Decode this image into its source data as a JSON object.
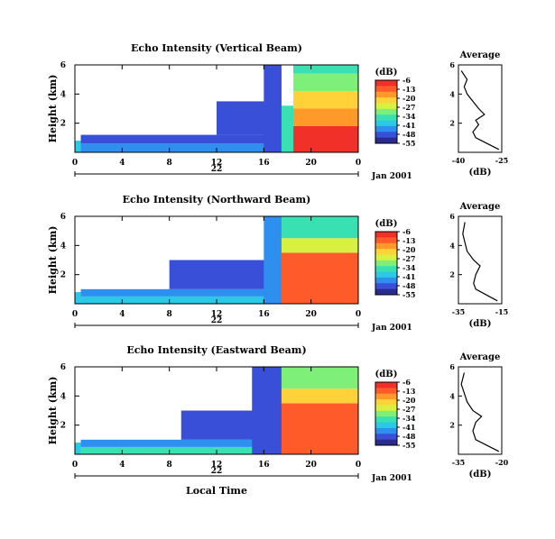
{
  "figure": {
    "common_xlabel": "Local Time",
    "date_label": "Jan 2001",
    "day_label": "22",
    "colorbar_unit": "(dB)",
    "profile_title": "Average",
    "profile_xlabel": "(dB)",
    "colors": {
      "background": "#ffffff",
      "axis": "#000000",
      "scale": [
        "#2b2b8f",
        "#3a4fd8",
        "#2f8fef",
        "#2cc9e6",
        "#38e0b2",
        "#7ef07a",
        "#d8f040",
        "#ffd23a",
        "#ff9a2a",
        "#ff5a2a",
        "#f2302a"
      ]
    }
  },
  "chart_data": [
    {
      "type": "heatmap",
      "title": "Echo Intensity (Vertical Beam)",
      "ylabel": "Height (km)",
      "xticks": [
        "0",
        "4",
        "8",
        "12",
        "16",
        "20",
        "0"
      ],
      "yticks": [
        "6",
        "4",
        "2"
      ],
      "x_unit": "hour (local time), 22 Jan 2001",
      "xlim": [
        0,
        24
      ],
      "ylim": [
        0,
        6
      ],
      "colorbar_ticks": [
        "-6",
        "-13",
        "-20",
        "-27",
        "-34",
        "-41",
        "-48",
        "-55"
      ],
      "colorbar_range": [
        -55,
        -6
      ],
      "regions": [
        {
          "x": [
            0,
            0.5
          ],
          "y": [
            0,
            0.8
          ],
          "value": -41
        },
        {
          "x": [
            0.5,
            17
          ],
          "y": [
            0,
            0.6
          ],
          "value": -45
        },
        {
          "x": [
            0.5,
            17
          ],
          "y": [
            0.6,
            1.2
          ],
          "value": -50
        },
        {
          "x": [
            12,
            17
          ],
          "y": [
            1.2,
            3.5
          ],
          "value": -50
        },
        {
          "x": [
            16,
            17.5
          ],
          "y": [
            0,
            6
          ],
          "value": -48
        },
        {
          "x": [
            17.5,
            18.5
          ],
          "y": [
            0,
            3.2
          ],
          "value": -34
        },
        {
          "x": [
            18.5,
            24
          ],
          "y": [
            0,
            1.8
          ],
          "value": -8
        },
        {
          "x": [
            18.5,
            24
          ],
          "y": [
            1.8,
            3.0
          ],
          "value": -14
        },
        {
          "x": [
            18.5,
            24
          ],
          "y": [
            3.0,
            4.2
          ],
          "value": -22
        },
        {
          "x": [
            18.5,
            24
          ],
          "y": [
            4.2,
            5.4
          ],
          "value": -30
        },
        {
          "x": [
            18.5,
            24
          ],
          "y": [
            5.4,
            6.0
          ],
          "value": -37
        }
      ],
      "profile": {
        "xlim": [
          -40,
          -25
        ],
        "xticks": [
          "-40",
          "-25"
        ],
        "yticks": [
          "6",
          "4",
          "2"
        ],
        "points": [
          {
            "dB": -26,
            "h": 0.2
          },
          {
            "dB": -30,
            "h": 0.6
          },
          {
            "dB": -34,
            "h": 1.0
          },
          {
            "dB": -35,
            "h": 1.4
          },
          {
            "dB": -33,
            "h": 1.9
          },
          {
            "dB": -34,
            "h": 2.2
          },
          {
            "dB": -31,
            "h": 2.6
          },
          {
            "dB": -33,
            "h": 3.0
          },
          {
            "dB": -35,
            "h": 3.5
          },
          {
            "dB": -37,
            "h": 4.0
          },
          {
            "dB": -38,
            "h": 4.5
          },
          {
            "dB": -37,
            "h": 5.0
          },
          {
            "dB": -39,
            "h": 5.6
          }
        ]
      }
    },
    {
      "type": "heatmap",
      "title": "Echo Intensity (Northward Beam)",
      "ylabel": "Height (km)",
      "xticks": [
        "0",
        "4",
        "8",
        "12",
        "16",
        "20",
        "0"
      ],
      "yticks": [
        "6",
        "4",
        "2"
      ],
      "x_unit": "hour (local time), 22 Jan 2001",
      "xlim": [
        0,
        24
      ],
      "ylim": [
        0,
        6
      ],
      "colorbar_ticks": [
        "-6",
        "-13",
        "-20",
        "-27",
        "-34",
        "-41",
        "-48",
        "-55"
      ],
      "colorbar_range": [
        -55,
        -6
      ],
      "regions": [
        {
          "x": [
            0,
            0.5
          ],
          "y": [
            0,
            0.8
          ],
          "value": -41
        },
        {
          "x": [
            0.5,
            17
          ],
          "y": [
            0,
            0.5
          ],
          "value": -38
        },
        {
          "x": [
            0.5,
            17
          ],
          "y": [
            0.5,
            1.0
          ],
          "value": -46
        },
        {
          "x": [
            8,
            17
          ],
          "y": [
            1.0,
            3.0
          ],
          "value": -48
        },
        {
          "x": [
            16,
            17.5
          ],
          "y": [
            0,
            6
          ],
          "value": -46
        },
        {
          "x": [
            17.5,
            24
          ],
          "y": [
            0,
            3.5
          ],
          "value": -10
        },
        {
          "x": [
            17.5,
            24
          ],
          "y": [
            3.5,
            4.5
          ],
          "value": -24
        },
        {
          "x": [
            17.5,
            24
          ],
          "y": [
            4.5,
            6.0
          ],
          "value": -33
        }
      ],
      "profile": {
        "xlim": [
          -35,
          -15
        ],
        "xticks": [
          "-35",
          "-15"
        ],
        "yticks": [
          "6",
          "4",
          "2"
        ],
        "points": [
          {
            "dB": -17,
            "h": 0.2
          },
          {
            "dB": -22,
            "h": 0.6
          },
          {
            "dB": -27,
            "h": 1.0
          },
          {
            "dB": -28,
            "h": 1.4
          },
          {
            "dB": -27,
            "h": 2.0
          },
          {
            "dB": -25,
            "h": 2.6
          },
          {
            "dB": -28,
            "h": 3.0
          },
          {
            "dB": -31,
            "h": 3.6
          },
          {
            "dB": -32,
            "h": 4.2
          },
          {
            "dB": -33,
            "h": 4.8
          },
          {
            "dB": -32,
            "h": 5.6
          }
        ]
      }
    },
    {
      "type": "heatmap",
      "title": "Echo Intensity (Eastward Beam)",
      "ylabel": "Height (km)",
      "xticks": [
        "0",
        "4",
        "8",
        "12",
        "16",
        "20",
        "0"
      ],
      "yticks": [
        "6",
        "4",
        "2"
      ],
      "x_unit": "hour (local time), 22 Jan 2001",
      "xlim": [
        0,
        24
      ],
      "ylim": [
        0,
        6
      ],
      "colorbar_ticks": [
        "-6",
        "-13",
        "-20",
        "-27",
        "-34",
        "-41",
        "-48",
        "-55"
      ],
      "colorbar_range": [
        -55,
        -6
      ],
      "regions": [
        {
          "x": [
            0,
            0.5
          ],
          "y": [
            0,
            0.8
          ],
          "value": -41
        },
        {
          "x": [
            0.5,
            17
          ],
          "y": [
            0,
            0.5
          ],
          "value": -36
        },
        {
          "x": [
            0.5,
            17
          ],
          "y": [
            0.5,
            1.0
          ],
          "value": -46
        },
        {
          "x": [
            9,
            17
          ],
          "y": [
            1.0,
            3.0
          ],
          "value": -48
        },
        {
          "x": [
            15,
            17.5
          ],
          "y": [
            0,
            6
          ],
          "value": -50
        },
        {
          "x": [
            17.5,
            24
          ],
          "y": [
            0,
            3.5
          ],
          "value": -9
        },
        {
          "x": [
            17.5,
            24
          ],
          "y": [
            3.5,
            4.5
          ],
          "value": -22
        },
        {
          "x": [
            17.5,
            24
          ],
          "y": [
            4.5,
            6.0
          ],
          "value": -32
        }
      ],
      "profile": {
        "xlim": [
          -35,
          -20
        ],
        "xticks": [
          "-35",
          "-20"
        ],
        "yticks": [
          "6",
          "4",
          "2"
        ],
        "points": [
          {
            "dB": -21,
            "h": 0.2
          },
          {
            "dB": -25,
            "h": 0.6
          },
          {
            "dB": -29,
            "h": 1.0
          },
          {
            "dB": -30,
            "h": 1.6
          },
          {
            "dB": -29,
            "h": 2.2
          },
          {
            "dB": -27,
            "h": 2.6
          },
          {
            "dB": -30,
            "h": 3.0
          },
          {
            "dB": -32,
            "h": 3.6
          },
          {
            "dB": -33,
            "h": 4.2
          },
          {
            "dB": -34,
            "h": 4.8
          },
          {
            "dB": -33,
            "h": 5.6
          }
        ]
      }
    }
  ]
}
